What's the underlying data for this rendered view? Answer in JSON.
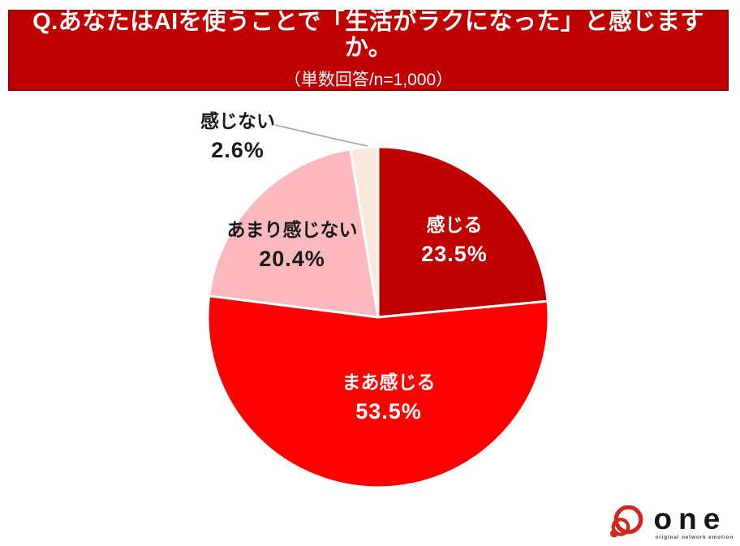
{
  "header": {
    "title": "Q.あなたはAIを使うことで「生活がラクになった」と感じますか。",
    "subtitle": "（単数回答/n=1,000）"
  },
  "chart_data": {
    "type": "pie",
    "title": "Q.あなたはAIを使うことで「生活がラクになった」と感じますか。",
    "subtitle": "単数回答/n=1,000",
    "sample_size": 1000,
    "start_angle_deg": 0,
    "direction": "clockwise",
    "categories": [
      "感じる",
      "まあ感じる",
      "あまり感じない",
      "感じない"
    ],
    "values": [
      23.5,
      53.5,
      20.4,
      2.6
    ],
    "slices": [
      {
        "label": "感じる",
        "value": 23.5,
        "value_text": "23.5%",
        "color": "#C00000",
        "label_color": "#FFFFFF",
        "label_position": "inside"
      },
      {
        "label": "まあ感じる",
        "value": 53.5,
        "value_text": "53.5%",
        "color": "#FF0000",
        "label_color": "#FFFFFF",
        "label_position": "inside"
      },
      {
        "label": "あまり感じない",
        "value": 20.4,
        "value_text": "20.4%",
        "color": "#FBB9BE",
        "label_color": "#1A1A1A",
        "label_position": "inside"
      },
      {
        "label": "感じない",
        "value": 2.6,
        "value_text": "2.6%",
        "color": "#FAE8DB",
        "label_color": "#1A1A1A",
        "label_position": "outside-with-leader-line"
      }
    ],
    "slice_border_color": "#FFFFFF",
    "leader_line_color": "#A0A0A0",
    "legend": "none"
  },
  "logo": {
    "name": "one",
    "tagline": "original network emotion",
    "brand_color": "#D2261C"
  }
}
